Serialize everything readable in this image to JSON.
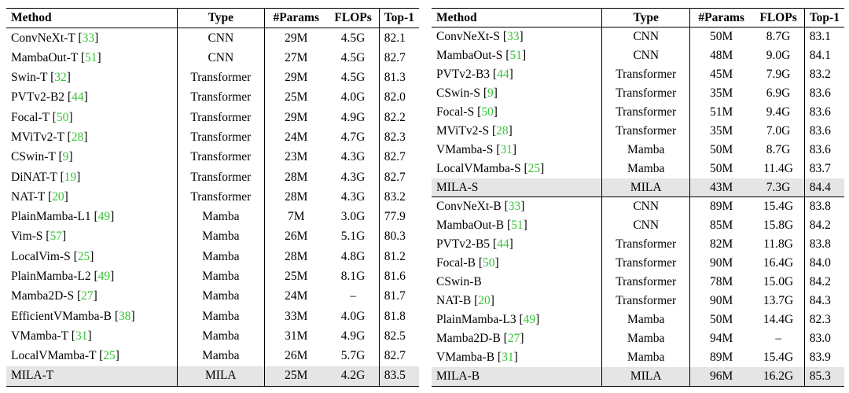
{
  "colors": {
    "citation_green": "#35c435",
    "highlight_row": "#e5e5e5",
    "rule": "#000000"
  },
  "tables": [
    {
      "name": "tiny-scale-results",
      "headers": [
        "Method",
        "Type",
        "#Params",
        "FLOPs",
        "Top-1"
      ],
      "rows": [
        {
          "method": "ConvNeXt-T",
          "cite": "33",
          "type": "CNN",
          "params": "29M",
          "flops": "4.5G",
          "top1": "82.1"
        },
        {
          "method": "MambaOut-T",
          "cite": "51",
          "type": "CNN",
          "params": "27M",
          "flops": "4.5G",
          "top1": "82.7"
        },
        {
          "method": "Swin-T",
          "cite": "32",
          "type": "Transformer",
          "params": "29M",
          "flops": "4.5G",
          "top1": "81.3"
        },
        {
          "method": "PVTv2-B2",
          "cite": "44",
          "type": "Transformer",
          "params": "25M",
          "flops": "4.0G",
          "top1": "82.0"
        },
        {
          "method": "Focal-T",
          "cite": "50",
          "type": "Transformer",
          "params": "29M",
          "flops": "4.9G",
          "top1": "82.2"
        },
        {
          "method": "MViTv2-T",
          "cite": "28",
          "type": "Transformer",
          "params": "24M",
          "flops": "4.7G",
          "top1": "82.3"
        },
        {
          "method": "CSwin-T",
          "cite": "9",
          "type": "Transformer",
          "params": "23M",
          "flops": "4.3G",
          "top1": "82.7"
        },
        {
          "method": "DiNAT-T",
          "cite": "19",
          "type": "Transformer",
          "params": "28M",
          "flops": "4.3G",
          "top1": "82.7"
        },
        {
          "method": "NAT-T",
          "cite": "20",
          "type": "Transformer",
          "params": "28M",
          "flops": "4.3G",
          "top1": "83.2"
        },
        {
          "method": "PlainMamba-L1",
          "cite": "49",
          "type": "Mamba",
          "params": "7M",
          "flops": "3.0G",
          "top1": "77.9"
        },
        {
          "method": "Vim-S",
          "cite": "57",
          "type": "Mamba",
          "params": "26M",
          "flops": "5.1G",
          "top1": "80.3"
        },
        {
          "method": "LocalVim-S",
          "cite": "25",
          "type": "Mamba",
          "params": "28M",
          "flops": "4.8G",
          "top1": "81.2"
        },
        {
          "method": "PlainMamba-L2",
          "cite": "49",
          "type": "Mamba",
          "params": "25M",
          "flops": "8.1G",
          "top1": "81.6"
        },
        {
          "method": "Mamba2D-S",
          "cite": "27",
          "type": "Mamba",
          "params": "24M",
          "flops": "–",
          "top1": "81.7"
        },
        {
          "method": "EfficientVMamba-B",
          "cite": "38",
          "type": "Mamba",
          "params": "33M",
          "flops": "4.0G",
          "top1": "81.8"
        },
        {
          "method": "VMamba-T",
          "cite": "31",
          "type": "Mamba",
          "params": "31M",
          "flops": "4.9G",
          "top1": "82.5"
        },
        {
          "method": "LocalVMamba-T",
          "cite": "25",
          "type": "Mamba",
          "params": "26M",
          "flops": "5.7G",
          "top1": "82.7"
        },
        {
          "method": "MILA-T",
          "cite": null,
          "type": "MILA",
          "params": "25M",
          "flops": "4.2G",
          "top1": "83.5",
          "highlight": true
        }
      ]
    },
    {
      "name": "small-base-scale-results",
      "headers": [
        "Method",
        "Type",
        "#Params",
        "FLOPs",
        "Top-1"
      ],
      "rows": [
        {
          "method": "ConvNeXt-S",
          "cite": "33",
          "type": "CNN",
          "params": "50M",
          "flops": "8.7G",
          "top1": "83.1"
        },
        {
          "method": "MambaOut-S",
          "cite": "51",
          "type": "CNN",
          "params": "48M",
          "flops": "9.0G",
          "top1": "84.1"
        },
        {
          "method": "PVTv2-B3",
          "cite": "44",
          "type": "Transformer",
          "params": "45M",
          "flops": "7.9G",
          "top1": "83.2"
        },
        {
          "method": "CSwin-S",
          "cite": "9",
          "type": "Transformer",
          "params": "35M",
          "flops": "6.9G",
          "top1": "83.6"
        },
        {
          "method": "Focal-S",
          "cite": "50",
          "type": "Transformer",
          "params": "51M",
          "flops": "9.4G",
          "top1": "83.6"
        },
        {
          "method": "MViTv2-S",
          "cite": "28",
          "type": "Transformer",
          "params": "35M",
          "flops": "7.0G",
          "top1": "83.6"
        },
        {
          "method": "VMamba-S",
          "cite": "31",
          "type": "Mamba",
          "params": "50M",
          "flops": "8.7G",
          "top1": "83.6"
        },
        {
          "method": "LocalVMamba-S",
          "cite": "25",
          "type": "Mamba",
          "params": "50M",
          "flops": "11.4G",
          "top1": "83.7"
        },
        {
          "method": "MILA-S",
          "cite": null,
          "type": "MILA",
          "params": "43M",
          "flops": "7.3G",
          "top1": "84.4",
          "highlight": true,
          "group_end": true
        },
        {
          "method": "ConvNeXt-B",
          "cite": "33",
          "type": "CNN",
          "params": "89M",
          "flops": "15.4G",
          "top1": "83.8"
        },
        {
          "method": "MambaOut-B",
          "cite": "51",
          "type": "CNN",
          "params": "85M",
          "flops": "15.8G",
          "top1": "84.2"
        },
        {
          "method": "PVTv2-B5",
          "cite": "44",
          "type": "Transformer",
          "params": "82M",
          "flops": "11.8G",
          "top1": "83.8"
        },
        {
          "method": "Focal-B",
          "cite": "50",
          "type": "Transformer",
          "params": "90M",
          "flops": "16.4G",
          "top1": "84.0"
        },
        {
          "method": "CSwin-B",
          "cite": null,
          "type": "Transformer",
          "params": "78M",
          "flops": "15.0G",
          "top1": "84.2"
        },
        {
          "method": "NAT-B",
          "cite": "20",
          "type": "Transformer",
          "params": "90M",
          "flops": "13.7G",
          "top1": "84.3"
        },
        {
          "method": "PlainMamba-L3",
          "cite": "49",
          "type": "Mamba",
          "params": "50M",
          "flops": "14.4G",
          "top1": "82.3"
        },
        {
          "method": "Mamba2D-B",
          "cite": "27",
          "type": "Mamba",
          "params": "94M",
          "flops": "–",
          "top1": "83.0"
        },
        {
          "method": "VMamba-B",
          "cite": "31",
          "type": "Mamba",
          "params": "89M",
          "flops": "15.4G",
          "top1": "83.9"
        },
        {
          "method": "MILA-B",
          "cite": null,
          "type": "MILA",
          "params": "96M",
          "flops": "16.2G",
          "top1": "85.3",
          "highlight": true
        }
      ]
    }
  ]
}
